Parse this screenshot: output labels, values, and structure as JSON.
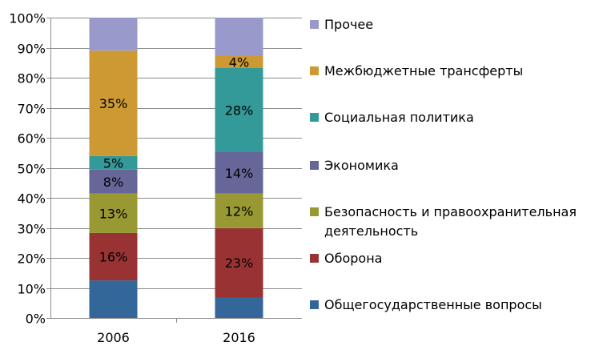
{
  "chart_data": {
    "type": "bar",
    "stacked": true,
    "percent": true,
    "title": "",
    "xlabel": "",
    "ylabel": "",
    "ylim": [
      0,
      100
    ],
    "yticks": [
      "0%",
      "10%",
      "20%",
      "30%",
      "40%",
      "50%",
      "60%",
      "70%",
      "80%",
      "90%",
      "100%"
    ],
    "grid": true,
    "legend_position": "right",
    "categories": [
      "2006",
      "2016"
    ],
    "series": [
      {
        "name": "Общегосударственные вопросы",
        "color": "#336699",
        "values": [
          12.5,
          6.8
        ],
        "labels": [
          "",
          ""
        ]
      },
      {
        "name": "Оборона",
        "color": "#993333",
        "values": [
          15.8,
          23.1
        ],
        "labels": [
          "16%",
          "23%"
        ]
      },
      {
        "name": "Безопасность и правоохранительная деятельность",
        "name_lines": [
          "Безопасность и правоохранительная",
          "деятельность"
        ],
        "color": "#999933",
        "values": [
          13.1,
          11.5
        ],
        "labels": [
          "13%",
          "12%"
        ]
      },
      {
        "name": "Экономика",
        "color": "#666699",
        "values": [
          8.0,
          13.8
        ],
        "labels": [
          "8%",
          "14%"
        ]
      },
      {
        "name": "Социальная политика",
        "color": "#339999",
        "values": [
          4.5,
          28.0
        ],
        "labels": [
          "5%",
          "28%"
        ]
      },
      {
        "name": "Межбюджетные трансферты",
        "color": "#CC9933",
        "values": [
          35.1,
          4.0
        ],
        "labels": [
          "35%",
          "4%"
        ]
      },
      {
        "name": "Прочее",
        "color": "#9999CC",
        "values": [
          11.0,
          12.8
        ],
        "labels": [
          "",
          ""
        ]
      }
    ]
  }
}
